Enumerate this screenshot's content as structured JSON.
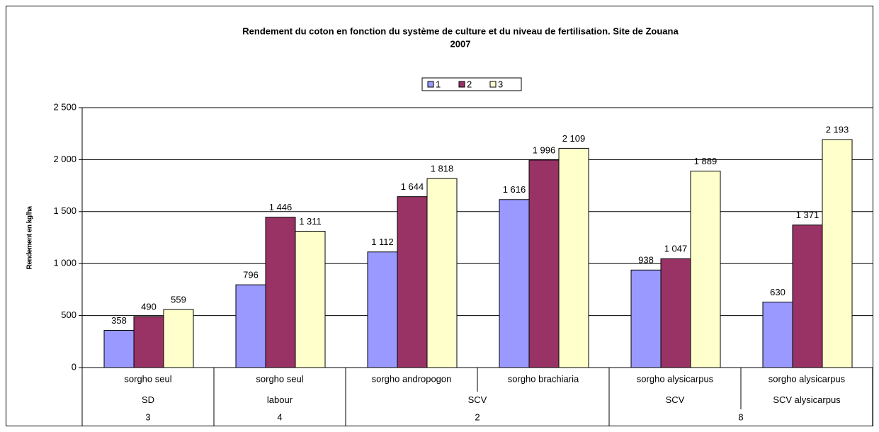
{
  "chart_data": {
    "type": "bar",
    "title": [
      "Rendement du coton en fonction du système de culture et du niveau de fertilisation. Site de Zouana",
      "2007"
    ],
    "y_label": "Rendement en kg/ha",
    "category_levels": [
      [
        "sorgho seul",
        "sorgho seul",
        "sorgho andropogon",
        "sorgho brachiaria",
        "sorgho alysicarpus",
        "sorgho alysicarpus"
      ],
      [
        "SD",
        "labour",
        "SCV",
        null,
        "SCV",
        "SCV alysicarpus"
      ],
      [
        "3",
        "4",
        "2",
        null,
        "8",
        null
      ]
    ],
    "series": [
      {
        "name": "1",
        "color": "#9999ff",
        "values": [
          358,
          796,
          1112,
          1616,
          938,
          630
        ],
        "value_labels": [
          "358",
          "796",
          "1 112",
          "1 616",
          "938",
          "630"
        ]
      },
      {
        "name": "2",
        "color": "#993366",
        "values": [
          490,
          1446,
          1644,
          1996,
          1047,
          1371
        ],
        "value_labels": [
          "490",
          "1 446",
          "1 644",
          "1 996",
          "1 047",
          "1 371"
        ]
      },
      {
        "name": "3",
        "color": "#ffffcc",
        "values": [
          559,
          1311,
          1818,
          2109,
          1889,
          2193
        ],
        "value_labels": [
          "559",
          "1 311",
          "1 818",
          "2 109",
          "1 889",
          "2 193"
        ]
      }
    ],
    "ylim": [
      0,
      2500
    ],
    "yticks": [
      0,
      500,
      {
        "value": 1000,
        "label": "1 000"
      },
      {
        "value": 1500,
        "label": "1 500"
      },
      {
        "value": 2000,
        "label": "2 000"
      },
      {
        "value": 2500,
        "label": "2 500"
      }
    ],
    "grid": true,
    "legend": "top"
  }
}
